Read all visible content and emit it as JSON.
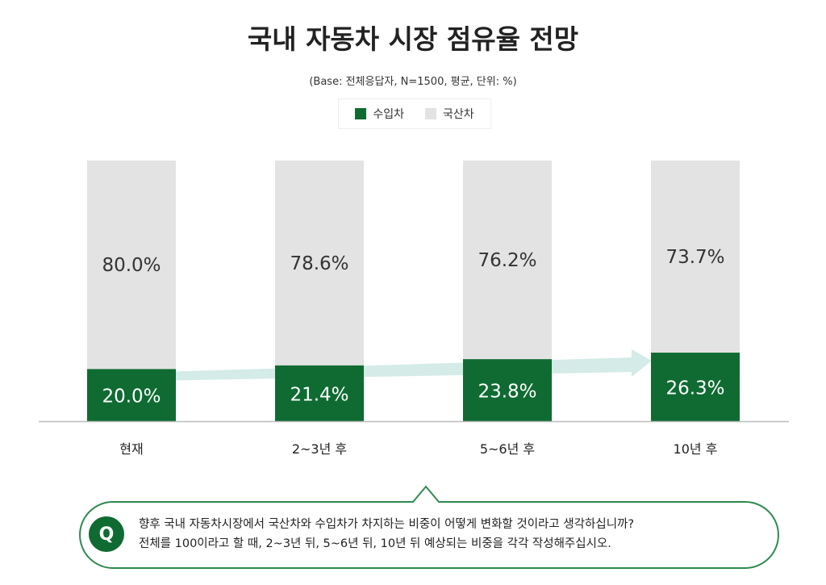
{
  "chart_data": {
    "type": "bar",
    "stacked": true,
    "title": "국내 자동차 시장 점유율 전망",
    "subtitle": "(Base: 전체응답자, N=1500, 평균, 단위: %)",
    "categories": [
      "현재",
      "2~3년 후",
      "5~6년 후",
      "10년 후"
    ],
    "series": [
      {
        "name": "수입차",
        "values": [
          20.0,
          21.4,
          23.8,
          26.3
        ],
        "labels": [
          "20.0%",
          "21.4%",
          "23.8%",
          "26.3%"
        ],
        "color": "#0f6b32"
      },
      {
        "name": "국산차",
        "values": [
          80.0,
          78.6,
          76.2,
          73.7
        ],
        "labels": [
          "80.0%",
          "78.6%",
          "76.2%",
          "73.7%"
        ],
        "color": "#e3e3e3"
      }
    ],
    "ylim": [
      0,
      100
    ],
    "legend": "top",
    "grid": false,
    "arrow_color": "#cfe9e4"
  },
  "question": {
    "badge": "Q",
    "line1": "향후 국내 자동차시장에서 국산차와 수입차가 차지하는 비중이 어떻게 변화할 것이라고 생각하십니까?",
    "line2": "전체를 100이라고 할 때, 2~3년 뒤, 5~6년 뒤, 10년 뒤 예상되는 비중을 각각 작성해주십시오.",
    "border_color": "#2e8a4e"
  }
}
